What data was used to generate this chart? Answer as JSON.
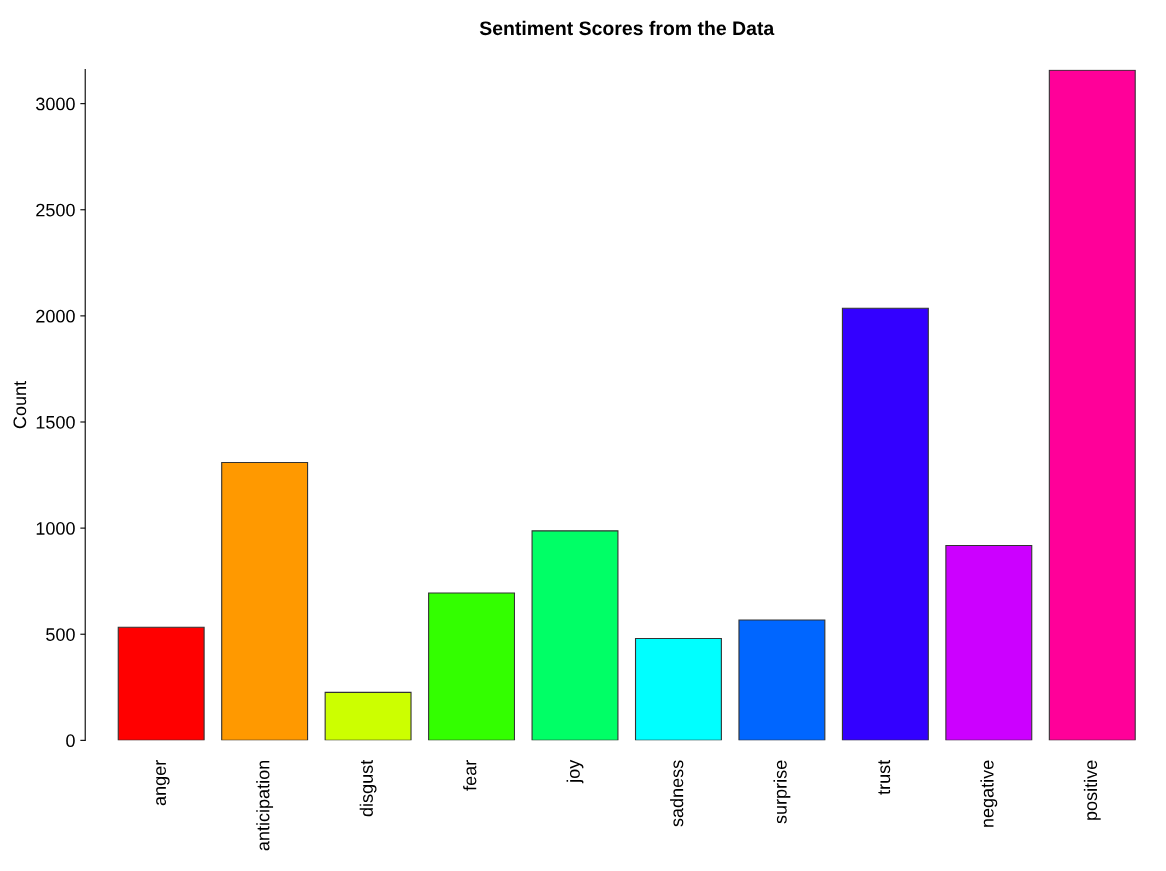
{
  "chart_data": {
    "type": "bar",
    "title": "Sentiment Scores from the Data",
    "ylabel": "Count",
    "categories": [
      "anger",
      "anticipation",
      "disgust",
      "fear",
      "joy",
      "sadness",
      "surprise",
      "trust",
      "negative",
      "positive"
    ],
    "values": [
      533,
      1309,
      226,
      694,
      987,
      480,
      567,
      2036,
      918,
      3158
    ],
    "colors": [
      "#ff0000",
      "#ff9900",
      "#ccff00",
      "#33ff00",
      "#00ff66",
      "#00ffff",
      "#0066ff",
      "#3300ff",
      "#cc00ff",
      "#ff0099"
    ],
    "ylim": [
      0,
      3160
    ],
    "yticks": [
      0,
      500,
      1000,
      1500,
      2000,
      2500,
      3000
    ],
    "grid": false,
    "legend": false
  }
}
